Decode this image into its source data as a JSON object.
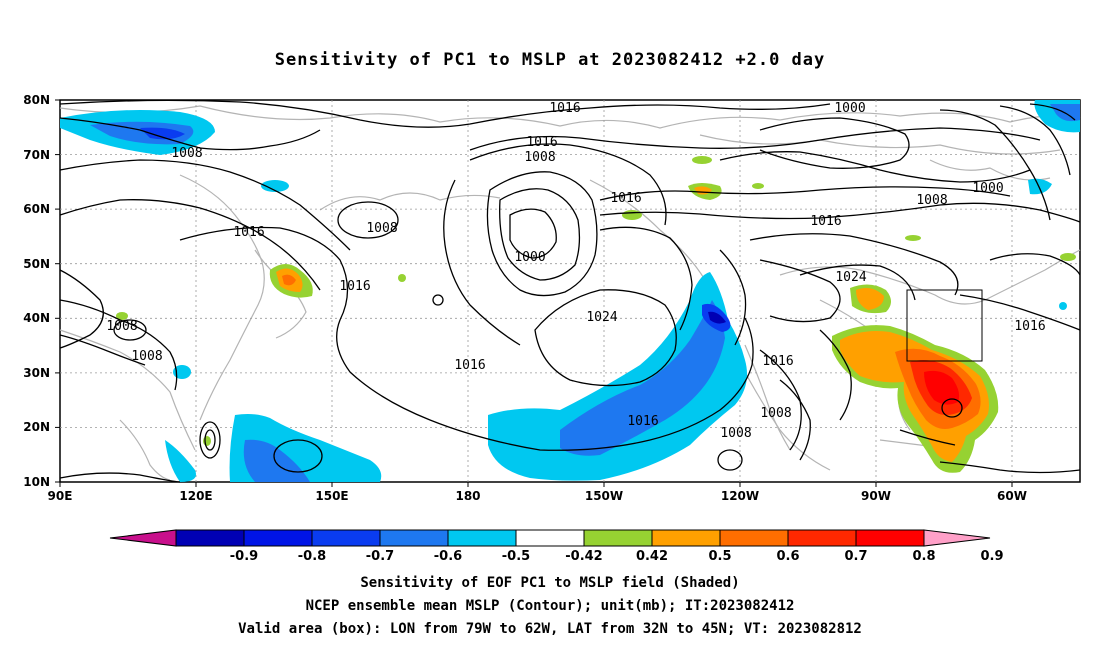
{
  "title": "Sensitivity of PC1 to MSLP at 2023082412 +2.0 day",
  "axes": {
    "lat_labels": [
      "80N",
      "70N",
      "60N",
      "50N",
      "40N",
      "30N",
      "20N",
      "10N"
    ],
    "lon_labels": [
      "90E",
      "120E",
      "150E",
      "180",
      "150W",
      "120W",
      "90W",
      "60W"
    ]
  },
  "contour_labels": [
    "1016",
    "1000",
    "1008",
    "1016",
    "1008",
    "1016",
    "1008",
    "1000",
    "1008",
    "1016",
    "1000",
    "1016",
    "1008",
    "1016",
    "1024",
    "1024",
    "1016",
    "1016",
    "1008",
    "1008",
    "1016",
    "1016",
    "1008",
    "1008"
  ],
  "colorbar": {
    "ticks": [
      "-0.9",
      "-0.8",
      "-0.7",
      "-0.6",
      "-0.5",
      "-0.42",
      "0.42",
      "0.5",
      "0.6",
      "0.7",
      "0.8",
      "0.9"
    ],
    "colors": [
      "#c8108c",
      "#0000b4",
      "#0014e6",
      "#0a3cf0",
      "#1e78f0",
      "#00c8f0",
      "#ffffff",
      "#96d232",
      "#ffa000",
      "#ff6e00",
      "#ff2800",
      "#ff0000",
      "#ffa0c8"
    ]
  },
  "captions": {
    "line1": "Sensitivity of EOF PC1 to MSLP field (Shaded)",
    "line2": "NCEP ensemble mean MSLP (Contour); unit(mb); IT:2023082412",
    "line3": "Valid area (box): LON from 79W to 62W, LAT from 32N to 45N; VT: 2023082812"
  },
  "valid_box": {
    "lon_from": "79W",
    "lon_to": "62W",
    "lat_from": "32N",
    "lat_to": "45N"
  }
}
